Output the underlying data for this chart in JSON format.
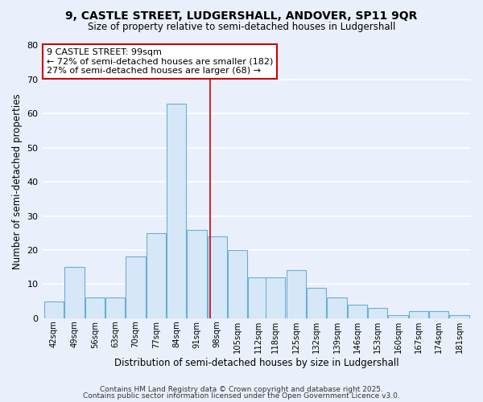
{
  "title": "9, CASTLE STREET, LUDGERSHALL, ANDOVER, SP11 9QR",
  "subtitle": "Size of property relative to semi-detached houses in Ludgershall",
  "xlabel": "Distribution of semi-detached houses by size in Ludgershall",
  "ylabel": "Number of semi-detached properties",
  "bin_starts": [
    42,
    49,
    56,
    63,
    70,
    77,
    84,
    91,
    98,
    105,
    112,
    118,
    125,
    132,
    139,
    146,
    153,
    160,
    167,
    174,
    181
  ],
  "bin_labels": [
    "42sqm",
    "49sqm",
    "56sqm",
    "63sqm",
    "70sqm",
    "77sqm",
    "84sqm",
    "91sqm",
    "98sqm",
    "105sqm",
    "112sqm",
    "118sqm",
    "125sqm",
    "132sqm",
    "139sqm",
    "146sqm",
    "153sqm",
    "160sqm",
    "167sqm",
    "174sqm",
    "181sqm"
  ],
  "counts": [
    5,
    15,
    6,
    6,
    18,
    25,
    63,
    26,
    24,
    20,
    12,
    12,
    14,
    9,
    6,
    4,
    3,
    1,
    2,
    2,
    1
  ],
  "bar_color": "#d6e8f7",
  "bar_edge_color": "#6aaed6",
  "property_size": 99,
  "property_label": "9 CASTLE STREET: 99sqm",
  "annotation_line1": "← 72% of semi-detached houses are smaller (182)",
  "annotation_line2": "27% of semi-detached houses are larger (68) →",
  "annotation_box_color": "#ffffff",
  "annotation_box_edge_color": "#cc0000",
  "vline_color": "#cc0000",
  "ylim": [
    0,
    80
  ],
  "yticks": [
    0,
    10,
    20,
    30,
    40,
    50,
    60,
    70,
    80
  ],
  "background_color": "#eaf0fb",
  "grid_color": "#ffffff",
  "footer_line1": "Contains HM Land Registry data © Crown copyright and database right 2025.",
  "footer_line2": "Contains public sector information licensed under the Open Government Licence v3.0."
}
